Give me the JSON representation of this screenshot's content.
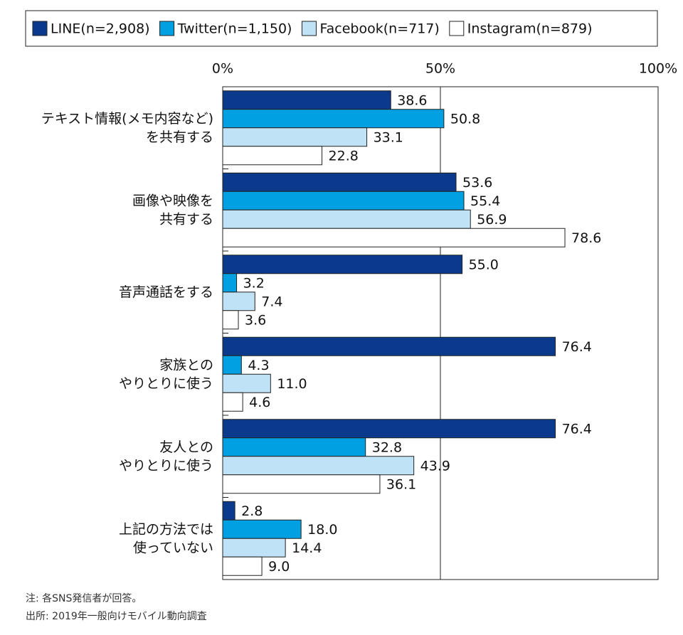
{
  "chart_data": {
    "type": "hbar",
    "categories": [
      "テキスト情報(メモ内容など)\nを共有する",
      "画像や映像を\n共有する",
      "音声通話をする",
      "家族との\nやりとりに使う",
      "友人との\nやりとりに使う",
      "上記の方法では\n使っていない"
    ],
    "series": [
      {
        "name": "LINE(n=2,908)",
        "color": "#0b3a8d",
        "values": [
          38.6,
          53.6,
          55.0,
          76.4,
          76.4,
          2.8
        ],
        "value_labels": [
          "38.6",
          "53.6",
          "55.0",
          "76.4",
          "76.4",
          "2.8"
        ]
      },
      {
        "name": "Twitter(n=1,150)",
        "color": "#00a0e3",
        "values": [
          50.8,
          55.4,
          3.2,
          4.3,
          32.8,
          18.0
        ],
        "value_labels": [
          "50.8",
          "55.4",
          "3.2",
          "4.3",
          "32.8",
          "18.0"
        ]
      },
      {
        "name": "Facebook(n=717)",
        "color": "#bfe2f7",
        "values": [
          33.1,
          56.9,
          7.4,
          11.0,
          43.9,
          14.4
        ],
        "value_labels": [
          "33.1",
          "56.9",
          "7.4",
          "11.0",
          "43.9",
          "14.4"
        ]
      },
      {
        "name": "Instagram(n=879)",
        "color": "#ffffff",
        "values": [
          22.8,
          78.6,
          3.6,
          4.6,
          36.1,
          9.0
        ],
        "value_labels": [
          "22.8",
          "78.6",
          "3.6",
          "4.6",
          "36.1",
          "9.0"
        ]
      }
    ],
    "xlim": [
      0,
      100
    ],
    "xticks": [
      {
        "value": 0,
        "label": "0%"
      },
      {
        "value": 50,
        "label": "50%"
      },
      {
        "value": 100,
        "label": "100%"
      }
    ],
    "grid": true,
    "legend": "top",
    "notes": [
      "注: 各SNS発信者が回答。",
      "出所: 2019年一般向けモバイル動向調査"
    ]
  }
}
